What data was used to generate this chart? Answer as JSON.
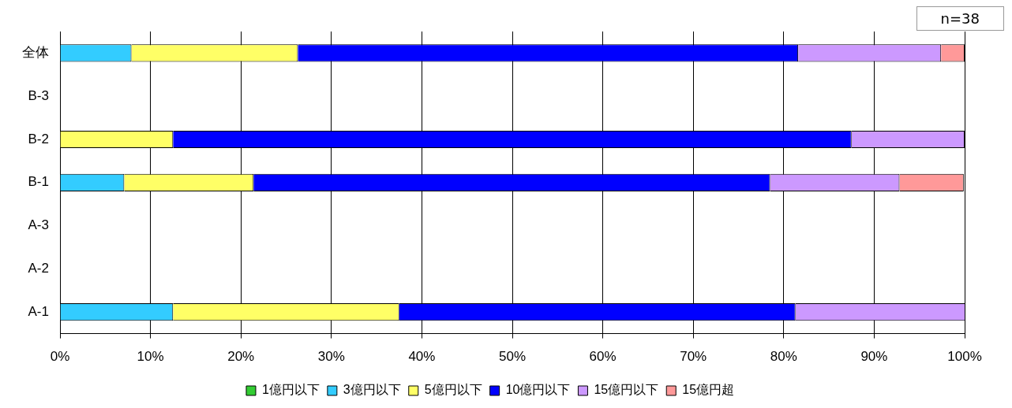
{
  "chart_data": {
    "type": "bar",
    "orientation": "horizontal",
    "stacked": true,
    "categories": [
      "全体",
      "B-3",
      "B-2",
      "B-1",
      "A-3",
      "A-2",
      "A-1"
    ],
    "series": [
      {
        "name": "1億円以下",
        "color": "#33cc33",
        "values": [
          0,
          null,
          0,
          0,
          null,
          null,
          0
        ]
      },
      {
        "name": "3億円以下",
        "color": "#33ccff",
        "values": [
          7.9,
          null,
          0,
          7.1,
          null,
          null,
          12.5
        ]
      },
      {
        "name": "5億円以下",
        "color": "#ffff66",
        "values": [
          18.4,
          null,
          12.5,
          14.3,
          null,
          null,
          25
        ]
      },
      {
        "name": "10億円以下",
        "color": "#0000ff",
        "values": [
          55.3,
          null,
          75,
          57.1,
          null,
          null,
          43.8
        ]
      },
      {
        "name": "15億円以下",
        "color": "#cc99ff",
        "values": [
          15.8,
          null,
          12.5,
          14.3,
          null,
          null,
          18.8
        ]
      },
      {
        "name": "15億円超",
        "color": "#ff9999",
        "values": [
          2.6,
          null,
          0,
          7.1,
          null,
          null,
          0
        ]
      }
    ],
    "xlim": [
      0,
      100
    ],
    "xticks": [
      {
        "value": 0,
        "label": "0%"
      },
      {
        "value": 10,
        "label": "10%"
      },
      {
        "value": 20,
        "label": "20%"
      },
      {
        "value": 30,
        "label": "30%"
      },
      {
        "value": 40,
        "label": "40%"
      },
      {
        "value": 50,
        "label": "50%"
      },
      {
        "value": 60,
        "label": "60%"
      },
      {
        "value": 70,
        "label": "70%"
      },
      {
        "value": 80,
        "label": "80%"
      },
      {
        "value": 90,
        "label": "90%"
      },
      {
        "value": 100,
        "label": "100%"
      }
    ],
    "grid": "x",
    "legend": "bottom",
    "annotations": [
      "n=38"
    ]
  }
}
